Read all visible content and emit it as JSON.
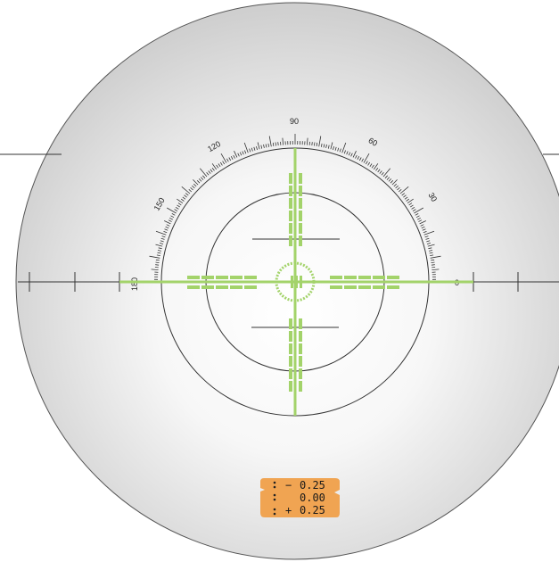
{
  "scale": {
    "labels": [
      "90",
      "120",
      "150",
      "180",
      "60",
      "30",
      "0"
    ]
  },
  "power_selector": {
    "rows": [
      {
        "sign": "−",
        "value": "0.25"
      },
      {
        "sign": "",
        "value": "0.00"
      },
      {
        "sign": "+",
        "value": "0.25"
      }
    ]
  },
  "colors": {
    "lens_edge": "#d3d3d3",
    "lens_center": "#ffffff",
    "reticle_line": "#333333",
    "target_green": "#a3d36a",
    "pad_orange": "#f0a452"
  },
  "icons": {
    "pad_dot": "bullet-dot-icon"
  }
}
